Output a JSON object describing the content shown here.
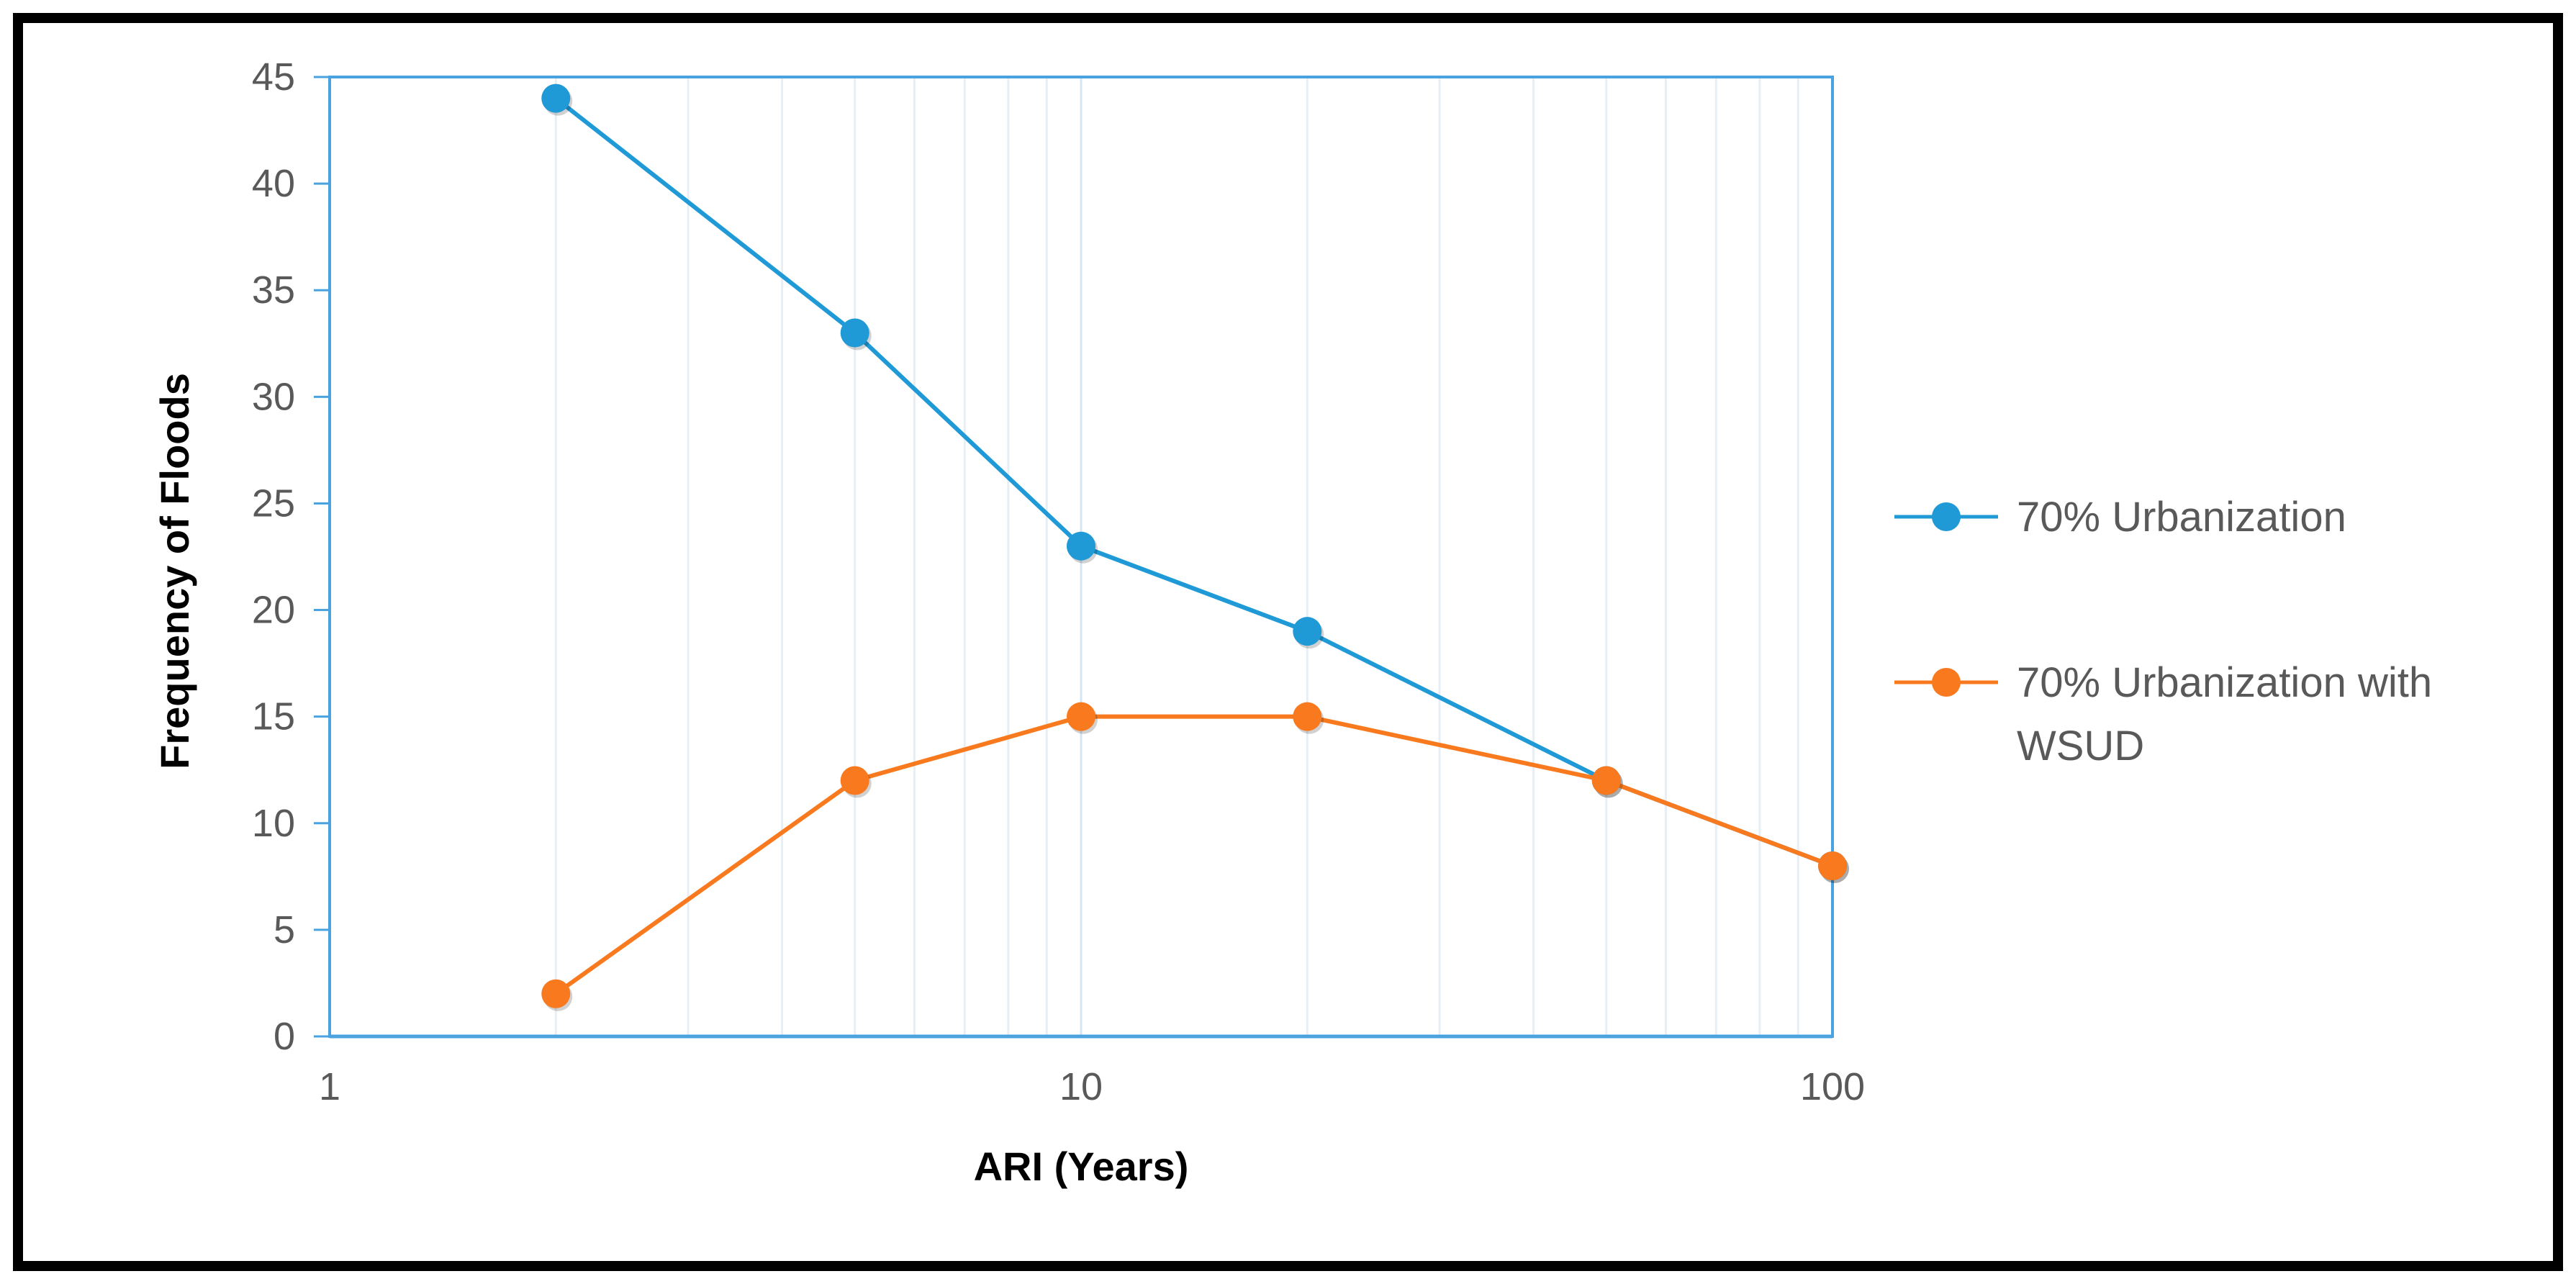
{
  "chart_data": {
    "type": "line",
    "xscale": "log",
    "xlabel": "ARI (Years)",
    "ylabel": "Frequency of Floods",
    "xlim": [
      1,
      100
    ],
    "ylim": [
      0,
      45
    ],
    "x_ticks": [
      "1",
      "10",
      "100"
    ],
    "y_ticks": [
      "0",
      "5",
      "10",
      "15",
      "20",
      "25",
      "30",
      "35",
      "40",
      "45"
    ],
    "grid": true,
    "legend_position": "right",
    "x": [
      2,
      5,
      10,
      20,
      50,
      100
    ],
    "series": [
      {
        "name": "70% Urbanization",
        "values": [
          44,
          33,
          23,
          19,
          12,
          8
        ],
        "color": "#1f9ad6"
      },
      {
        "name": "70% Urbanization with WSUD",
        "legend_lines": [
          "70% Urbanization with",
          "WSUD"
        ],
        "values": [
          2,
          12,
          15,
          15,
          12,
          8
        ],
        "color": "#f97a1e"
      }
    ]
  }
}
